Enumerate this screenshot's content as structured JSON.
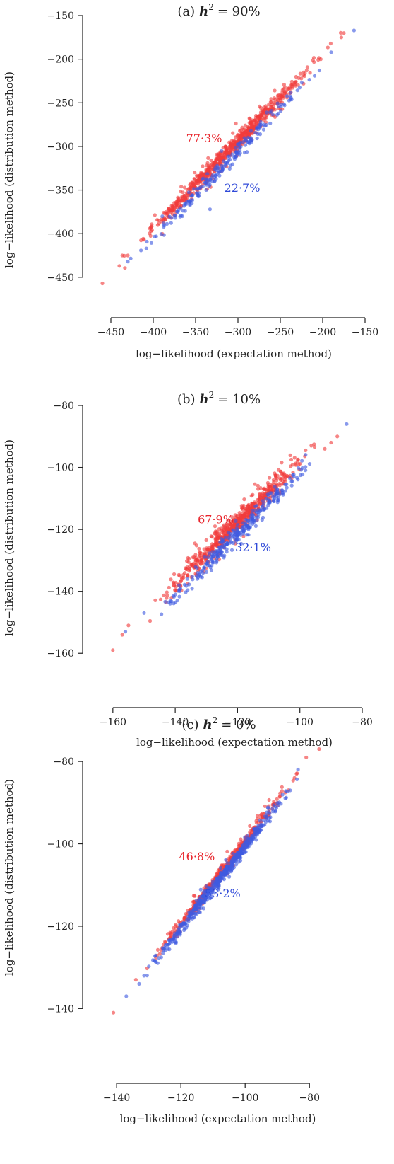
{
  "chart_data": [
    {
      "type": "scatter",
      "panel_label": "(a)",
      "title_var": "h",
      "title_sup": "2",
      "title_rest": "= 90%",
      "xlabel": "log−likelihood (expectation method)",
      "ylabel": "log−likelihood (distribution method)",
      "xlim": [
        -460,
        -150
      ],
      "ylim": [
        -455,
        -150
      ],
      "xticks": [
        -450,
        -400,
        -350,
        -300,
        -250,
        -200,
        -150
      ],
      "yticks": [
        -450,
        -400,
        -350,
        -300,
        -250,
        -200,
        -150
      ],
      "xtick_labels": [
        "−450",
        "−400",
        "−350",
        "−300",
        "−250",
        "−200",
        "−150"
      ],
      "ytick_labels": [
        "−450",
        "−400",
        "−350",
        "−300",
        "−250",
        "−200",
        "−150"
      ],
      "annotations": [
        {
          "text": "77·3%",
          "color": "#e8232a",
          "x": -340,
          "y": -295
        },
        {
          "text": "22·7%",
          "color": "#2f49d8",
          "x": -295,
          "y": -352
        }
      ],
      "series": [
        {
          "color": "#f03c3c",
          "share": 0.773,
          "scatter_sd": 5.5,
          "bias": 6,
          "points": [
            [
              -460,
              -457
            ],
            [
              -440,
              -437
            ],
            [
              -430,
              -425
            ],
            [
              -175,
              -170
            ],
            [
              -178,
              -175
            ]
          ]
        },
        {
          "color": "#3f5be0",
          "share": 0.227,
          "scatter_sd": 5,
          "bias": -5,
          "points": [
            [
              -430,
              -432
            ],
            [
              -333,
              -372
            ],
            [
              -163,
              -167
            ],
            [
              -190,
              -192
            ]
          ]
        }
      ],
      "x_range": [
        -450,
        -175
      ]
    },
    {
      "type": "scatter",
      "panel_label": "(b)",
      "title_var": "h",
      "title_sup": "2",
      "title_rest": "= 10%",
      "xlabel": "log−likelihood (expectation method)",
      "ylabel": "log−likelihood (distribution method)",
      "xlim": [
        -162,
        -80
      ],
      "ylim": [
        -162,
        -80
      ],
      "xticks": [
        -160,
        -140,
        -120,
        -100,
        -80
      ],
      "yticks": [
        -160,
        -140,
        -120,
        -100,
        -80
      ],
      "xtick_labels": [
        "−160",
        "−140",
        "−120",
        "−100",
        "−80"
      ],
      "ytick_labels": [
        "−160",
        "−140",
        "−120",
        "−100",
        "−80"
      ],
      "annotations": [
        {
          "text": "67·9%",
          "color": "#e8232a",
          "x": -127,
          "y": -118
        },
        {
          "text": "32·1%",
          "color": "#2f49d8",
          "x": -115,
          "y": -127
        }
      ],
      "series": [
        {
          "color": "#f03c3c",
          "share": 0.679,
          "scatter_sd": 2.0,
          "bias": 2.2,
          "points": [
            [
              -160,
              -159
            ],
            [
              -157,
              -154
            ],
            [
              -155,
              -151
            ],
            [
              -90,
              -92
            ],
            [
              -88,
              -90
            ],
            [
              -92,
              -94
            ]
          ]
        },
        {
          "color": "#3f5be0",
          "share": 0.321,
          "scatter_sd": 1.6,
          "bias": -1.6,
          "points": [
            [
              -156,
              -153
            ],
            [
              -85,
              -86
            ],
            [
              -150,
              -147
            ]
          ]
        }
      ],
      "x_range": [
        -150,
        -90
      ]
    },
    {
      "type": "scatter",
      "panel_label": "(c)",
      "title_var": "h",
      "title_sup": "2",
      "title_rest": "= 0%",
      "xlabel": "log−likelihood (expectation method)",
      "ylabel": "log−likelihood (distribution method)",
      "xlim": [
        -142,
        -75
      ],
      "ylim": [
        -142,
        -75
      ],
      "xticks": [
        -140,
        -120,
        -100,
        -80
      ],
      "yticks": [
        -140,
        -120,
        -100,
        -80
      ],
      "xtick_labels": [
        "−140",
        "−120",
        "−100",
        "−80"
      ],
      "ytick_labels": [
        "−140",
        "−120",
        "−100",
        "−80"
      ],
      "annotations": [
        {
          "text": "46·8%",
          "color": "#e8232a",
          "x": -115,
          "y": -104
        },
        {
          "text": "53·2%",
          "color": "#2f49d8",
          "x": -107,
          "y": -113
        }
      ],
      "series": [
        {
          "color": "#f03c3c",
          "share": 0.468,
          "scatter_sd": 0.9,
          "bias": 0.6,
          "points": [
            [
              -141,
              -141
            ],
            [
              -134,
              -133
            ],
            [
              -77,
              -77
            ],
            [
              -81,
              -79
            ],
            [
              -84,
              -83
            ]
          ]
        },
        {
          "color": "#3f5be0",
          "share": 0.532,
          "scatter_sd": 0.9,
          "bias": -0.6,
          "points": [
            [
              -137,
              -137
            ],
            [
              -133,
              -134
            ],
            [
              -86,
              -87
            ]
          ]
        }
      ],
      "x_range": [
        -135,
        -80
      ]
    }
  ]
}
